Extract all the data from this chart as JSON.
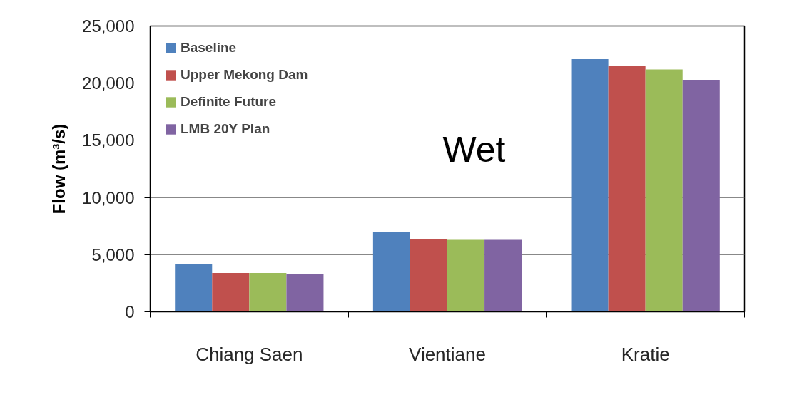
{
  "chart_data": {
    "type": "bar",
    "ylabel": "Flow (m³/s)",
    "categories": [
      "Chiang Saen",
      "Vientiane",
      "Kratie"
    ],
    "series": [
      {
        "name": "Baseline",
        "color": "#4f81bd",
        "values": [
          4150,
          7000,
          22100
        ]
      },
      {
        "name": "Upper Mekong Dam",
        "color": "#c0504d",
        "values": [
          3400,
          6350,
          21500
        ]
      },
      {
        "name": "Definite Future",
        "color": "#9bbb59",
        "values": [
          3400,
          6300,
          21200
        ]
      },
      {
        "name": "LMB 20Y Plan",
        "color": "#8064a2",
        "values": [
          3300,
          6300,
          20300
        ]
      }
    ],
    "ylim": [
      0,
      25000
    ],
    "yticks": [
      0,
      {
        "value": 5000,
        "label": "5,000"
      },
      {
        "value": 10000,
        "label": "10,000"
      },
      {
        "value": 15000,
        "label": "15,000"
      },
      {
        "value": 20000,
        "label": "20,000"
      },
      {
        "value": 25000,
        "label": "25,000"
      }
    ],
    "grid": "y",
    "legend": "top left",
    "annotations": [
      "Wet"
    ]
  }
}
